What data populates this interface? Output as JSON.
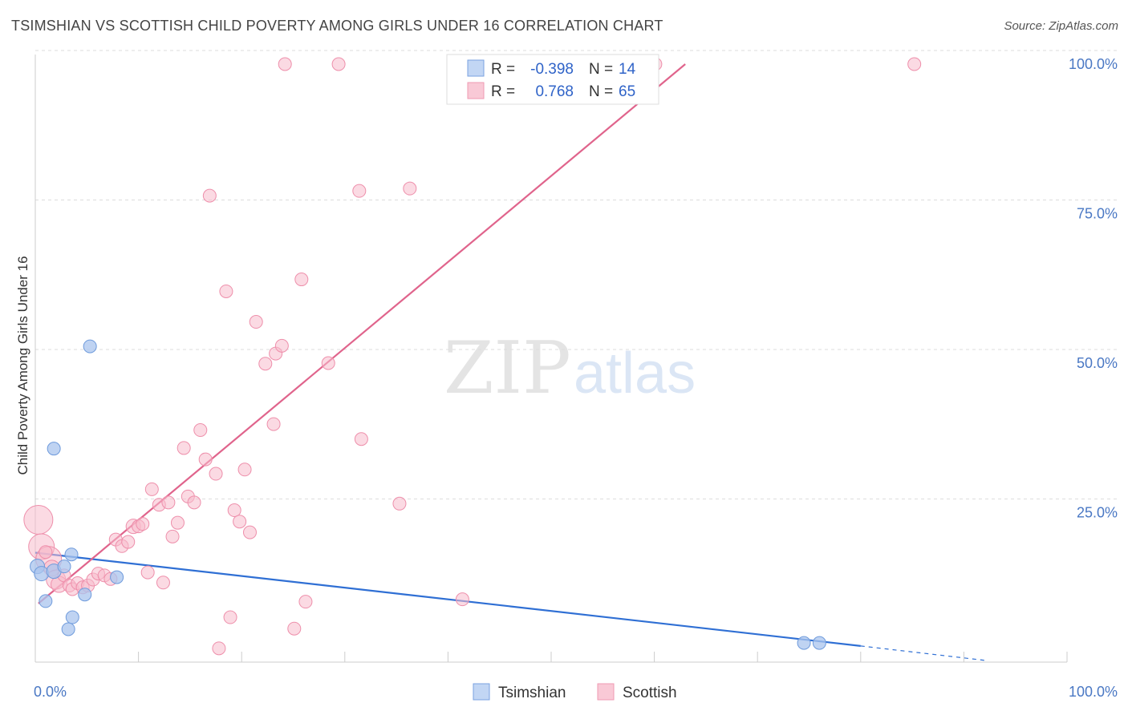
{
  "title": "TSIMSHIAN VS SCOTTISH CHILD POVERTY AMONG GIRLS UNDER 16 CORRELATION CHART",
  "source": "Source: ZipAtlas.com",
  "watermark": {
    "zip": "ZIP",
    "atlas": "atlas"
  },
  "colors": {
    "tsimshian_fill": "#a9c4ee",
    "tsimshian_stroke": "#6f9bdc",
    "tsimshian_line": "#2f6fd4",
    "scottish_fill": "#f8bccc",
    "scottish_stroke": "#ee8fab",
    "scottish_line": "#e0648c",
    "accent_text": "#4a78c4"
  },
  "legend_top": {
    "rows": [
      {
        "r_label": "R =",
        "r_value": "-0.398",
        "n_label": "N =",
        "n_value": "14"
      },
      {
        "r_label": "R =",
        "r_value": "0.768",
        "n_label": "N =",
        "n_value": "65"
      }
    ]
  },
  "legend_bottom": {
    "items": [
      "Tsimshian",
      "Scottish"
    ]
  },
  "chart_data": {
    "type": "scatter",
    "xlabel": "",
    "ylabel": "Child Poverty Among Girls Under 16",
    "xlim": [
      0,
      100
    ],
    "ylim": [
      0,
      100
    ],
    "x_tick_labels": [
      {
        "value": 0,
        "label": "0.0%"
      },
      {
        "value": 100,
        "label": "100.0%"
      }
    ],
    "y_tick_labels": [
      {
        "value": 25,
        "label": "25.0%"
      },
      {
        "value": 50,
        "label": "50.0%"
      },
      {
        "value": 75,
        "label": "75.0%"
      },
      {
        "value": 100,
        "label": "100.0%"
      }
    ],
    "grid": true,
    "series": [
      {
        "name": "Tsimshian",
        "points": [
          {
            "x": 0.2,
            "y": 16.0,
            "s": 9
          },
          {
            "x": 0.6,
            "y": 14.8,
            "s": 9
          },
          {
            "x": 1.0,
            "y": 10.2,
            "s": 8
          },
          {
            "x": 1.8,
            "y": 15.2,
            "s": 9
          },
          {
            "x": 1.8,
            "y": 35.7,
            "s": 8
          },
          {
            "x": 2.8,
            "y": 16.0,
            "s": 8
          },
          {
            "x": 3.2,
            "y": 5.5,
            "s": 8
          },
          {
            "x": 3.5,
            "y": 18.0,
            "s": 8
          },
          {
            "x": 3.6,
            "y": 7.5,
            "s": 8
          },
          {
            "x": 4.8,
            "y": 11.3,
            "s": 8
          },
          {
            "x": 5.3,
            "y": 52.8,
            "s": 8
          },
          {
            "x": 7.9,
            "y": 14.2,
            "s": 8
          },
          {
            "x": 74.5,
            "y": 3.2,
            "s": 8
          },
          {
            "x": 76.0,
            "y": 3.2,
            "s": 8
          }
        ],
        "trend": {
          "x1": 0,
          "y1": 18.3,
          "x2": 80,
          "y2": 2.7,
          "dash_to_x": 92,
          "dash_to_y": 0.3
        }
      },
      {
        "name": "Scottish",
        "points": [
          {
            "x": 0.3,
            "y": 23.8,
            "s": 18
          },
          {
            "x": 0.6,
            "y": 19.3,
            "s": 16
          },
          {
            "x": 1.3,
            "y": 17.2,
            "s": 16
          },
          {
            "x": 1.6,
            "y": 15.7,
            "s": 10
          },
          {
            "x": 2.0,
            "y": 13.8,
            "s": 12
          },
          {
            "x": 2.3,
            "y": 13.0,
            "s": 10
          },
          {
            "x": 2.8,
            "y": 14.5,
            "s": 8
          },
          {
            "x": 3.3,
            "y": 12.8,
            "s": 8
          },
          {
            "x": 3.6,
            "y": 12.2,
            "s": 8
          },
          {
            "x": 4.1,
            "y": 13.2,
            "s": 8
          },
          {
            "x": 4.6,
            "y": 12.5,
            "s": 8
          },
          {
            "x": 5.1,
            "y": 12.8,
            "s": 8
          },
          {
            "x": 5.6,
            "y": 13.8,
            "s": 8
          },
          {
            "x": 6.1,
            "y": 14.8,
            "s": 8
          },
          {
            "x": 6.7,
            "y": 14.5,
            "s": 8
          },
          {
            "x": 7.3,
            "y": 13.9,
            "s": 8
          },
          {
            "x": 7.8,
            "y": 20.5,
            "s": 8
          },
          {
            "x": 8.4,
            "y": 19.4,
            "s": 8
          },
          {
            "x": 9.0,
            "y": 20.1,
            "s": 8
          },
          {
            "x": 9.5,
            "y": 22.7,
            "s": 9
          },
          {
            "x": 10.0,
            "y": 22.7,
            "s": 8
          },
          {
            "x": 10.4,
            "y": 23.1,
            "s": 8
          },
          {
            "x": 10.9,
            "y": 15.0,
            "s": 8
          },
          {
            "x": 11.3,
            "y": 28.9,
            "s": 8
          },
          {
            "x": 12.0,
            "y": 26.3,
            "s": 8
          },
          {
            "x": 12.4,
            "y": 13.3,
            "s": 8
          },
          {
            "x": 12.9,
            "y": 26.7,
            "s": 8
          },
          {
            "x": 13.3,
            "y": 21.0,
            "s": 8
          },
          {
            "x": 13.8,
            "y": 23.3,
            "s": 8
          },
          {
            "x": 14.4,
            "y": 35.8,
            "s": 8
          },
          {
            "x": 14.8,
            "y": 27.7,
            "s": 8
          },
          {
            "x": 15.4,
            "y": 26.7,
            "s": 8
          },
          {
            "x": 16.0,
            "y": 38.8,
            "s": 8
          },
          {
            "x": 16.5,
            "y": 33.9,
            "s": 8
          },
          {
            "x": 16.9,
            "y": 78.0,
            "s": 8
          },
          {
            "x": 17.5,
            "y": 31.5,
            "s": 8
          },
          {
            "x": 17.8,
            "y": 2.3,
            "s": 8
          },
          {
            "x": 18.5,
            "y": 62.0,
            "s": 8
          },
          {
            "x": 18.9,
            "y": 7.5,
            "s": 8
          },
          {
            "x": 19.3,
            "y": 25.4,
            "s": 8
          },
          {
            "x": 19.8,
            "y": 23.5,
            "s": 8
          },
          {
            "x": 20.3,
            "y": 32.2,
            "s": 8
          },
          {
            "x": 20.8,
            "y": 21.7,
            "s": 8
          },
          {
            "x": 21.4,
            "y": 56.9,
            "s": 8
          },
          {
            "x": 22.3,
            "y": 49.9,
            "s": 8
          },
          {
            "x": 23.1,
            "y": 39.8,
            "s": 8
          },
          {
            "x": 23.3,
            "y": 51.6,
            "s": 8
          },
          {
            "x": 23.9,
            "y": 52.9,
            "s": 8
          },
          {
            "x": 24.2,
            "y": 100.0,
            "s": 8
          },
          {
            "x": 25.1,
            "y": 5.6,
            "s": 8
          },
          {
            "x": 25.8,
            "y": 64.0,
            "s": 8
          },
          {
            "x": 26.2,
            "y": 10.1,
            "s": 8
          },
          {
            "x": 28.4,
            "y": 50.0,
            "s": 8
          },
          {
            "x": 29.4,
            "y": 100.0,
            "s": 8
          },
          {
            "x": 31.4,
            "y": 78.8,
            "s": 8
          },
          {
            "x": 31.6,
            "y": 37.3,
            "s": 8
          },
          {
            "x": 35.3,
            "y": 26.5,
            "s": 8
          },
          {
            "x": 36.3,
            "y": 79.2,
            "s": 8
          },
          {
            "x": 41.4,
            "y": 10.5,
            "s": 8
          },
          {
            "x": 47.3,
            "y": 100.0,
            "s": 8
          },
          {
            "x": 47.6,
            "y": 100.0,
            "s": 8
          },
          {
            "x": 48.0,
            "y": 100.0,
            "s": 8
          },
          {
            "x": 60.1,
            "y": 100.0,
            "s": 8
          },
          {
            "x": 85.2,
            "y": 100.0,
            "s": 8
          },
          {
            "x": 1.0,
            "y": 18.4,
            "s": 8
          }
        ],
        "trend": {
          "x1": 0.3,
          "y1": 9.8,
          "x2": 63,
          "y2": 100
        }
      }
    ]
  }
}
